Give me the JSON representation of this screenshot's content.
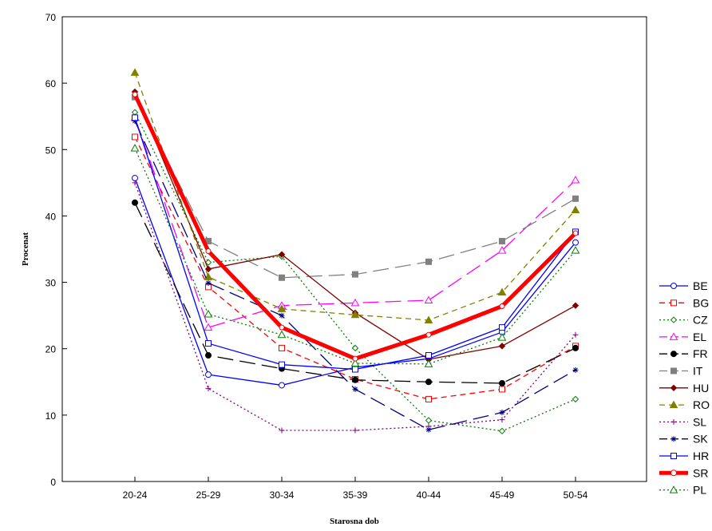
{
  "chart_data": {
    "type": "line",
    "title": "",
    "xlabel": "Starosna dob",
    "ylabel": "Procenat",
    "categories": [
      "20-24",
      "25-29",
      "30-34",
      "35-39",
      "40-44",
      "45-49",
      "50-54"
    ],
    "ylim": [
      0,
      70
    ],
    "yticks": [
      0,
      10,
      20,
      30,
      40,
      50,
      60,
      70
    ],
    "grid": false,
    "legend_position": "right",
    "series": [
      {
        "name": "BE",
        "color": "#0000ff",
        "dash": "solid",
        "marker": "circle",
        "values": [
          45.7,
          16.1,
          14.5,
          17.2,
          18.5,
          22.5,
          36.0
        ]
      },
      {
        "name": "BG",
        "color": "#ff0000",
        "dash": "dashed",
        "marker": "square",
        "values": [
          51.9,
          29.3,
          20.1,
          15.4,
          12.4,
          13.9,
          20.4
        ]
      },
      {
        "name": "CZ",
        "color": "#008000",
        "dash": "dotted",
        "marker": "diamond",
        "values": [
          55.6,
          33.0,
          33.9,
          20.1,
          9.2,
          7.6,
          12.4
        ]
      },
      {
        "name": "EL",
        "color": "#ff00ff",
        "dash": "longdash",
        "marker": "triangle",
        "values": [
          54.8,
          23.2,
          26.5,
          26.9,
          27.3,
          34.8,
          45.4
        ]
      },
      {
        "name": "FR",
        "color": "#000000",
        "dash": "longdash",
        "marker": "dot",
        "values": [
          42.0,
          19.0,
          17.0,
          15.3,
          15.0,
          14.8,
          20.1
        ]
      },
      {
        "name": "IT",
        "color": "#808080",
        "dash": "longdash",
        "marker": "filled-square",
        "values": [
          57.9,
          36.2,
          30.7,
          31.2,
          33.1,
          36.2,
          42.6
        ]
      },
      {
        "name": "HU",
        "color": "#800000",
        "dash": "solid",
        "marker": "filled-diamond",
        "values": [
          58.7,
          32.0,
          34.2,
          25.4,
          18.4,
          20.4,
          26.5
        ]
      },
      {
        "name": "RO",
        "color": "#808000",
        "dash": "dashed",
        "marker": "filled-triangle",
        "values": [
          61.6,
          30.8,
          26.0,
          25.1,
          24.3,
          28.5,
          40.9
        ]
      },
      {
        "name": "SL",
        "color": "#800080",
        "dash": "dotted",
        "marker": "plus",
        "values": [
          45.0,
          14.0,
          7.7,
          7.7,
          8.3,
          9.3,
          22.1
        ]
      },
      {
        "name": "SK",
        "color": "#000080",
        "dash": "longdash",
        "marker": "asterisk",
        "values": [
          54.3,
          29.9,
          25.0,
          13.9,
          7.8,
          10.4,
          16.8
        ]
      },
      {
        "name": "HR",
        "color": "#0000ff",
        "dash": "solid",
        "marker": "square",
        "values": [
          54.8,
          20.8,
          17.6,
          16.9,
          19.0,
          23.2,
          37.6
        ]
      },
      {
        "name": "SR",
        "color": "#ff0000",
        "dash": "solid",
        "marker": "circle",
        "thick": true,
        "values": [
          58.3,
          34.7,
          23.2,
          18.5,
          22.1,
          26.4,
          37.4
        ]
      },
      {
        "name": "PL",
        "color": "#008000",
        "dash": "dotted",
        "marker": "triangle",
        "values": [
          50.2,
          25.2,
          22.1,
          17.8,
          17.7,
          21.7,
          34.8
        ]
      }
    ]
  }
}
